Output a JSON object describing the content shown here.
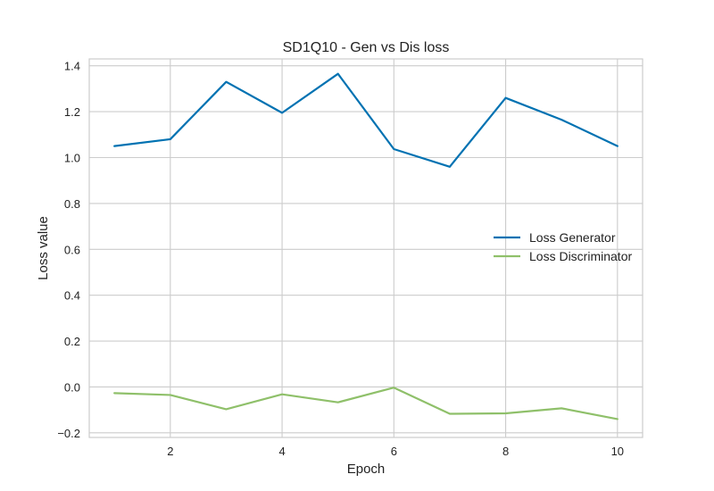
{
  "chart_data": {
    "type": "line",
    "title": "SD1Q10 - Gen vs Dis loss",
    "xlabel": "Epoch",
    "ylabel": "Loss value",
    "xlim": [
      0.55,
      10.45
    ],
    "ylim": [
      -0.22,
      1.43
    ],
    "xticks": [
      2,
      4,
      6,
      8,
      10
    ],
    "xtick_labels": [
      "2",
      "4",
      "6",
      "8",
      "10"
    ],
    "yticks": [
      -0.2,
      0.0,
      0.2,
      0.4,
      0.6,
      0.8,
      1.0,
      1.2,
      1.4
    ],
    "ytick_labels": [
      "−0.2",
      "0.0",
      "0.2",
      "0.4",
      "0.6",
      "0.8",
      "1.0",
      "1.2",
      "1.4"
    ],
    "grid": true,
    "legend_position": "center-right",
    "x": [
      1,
      2,
      3,
      4,
      5,
      6,
      7,
      8,
      9,
      10
    ],
    "series": [
      {
        "name": "Loss Generator",
        "color": "#0072b2",
        "values": [
          1.05,
          1.08,
          1.33,
          1.195,
          1.365,
          1.037,
          0.96,
          1.26,
          1.165,
          1.05
        ]
      },
      {
        "name": "Loss Discriminator",
        "color": "#8fc06a",
        "values": [
          -0.027,
          -0.035,
          -0.097,
          -0.032,
          -0.067,
          -0.003,
          -0.117,
          -0.115,
          -0.093,
          -0.14
        ]
      }
    ]
  }
}
